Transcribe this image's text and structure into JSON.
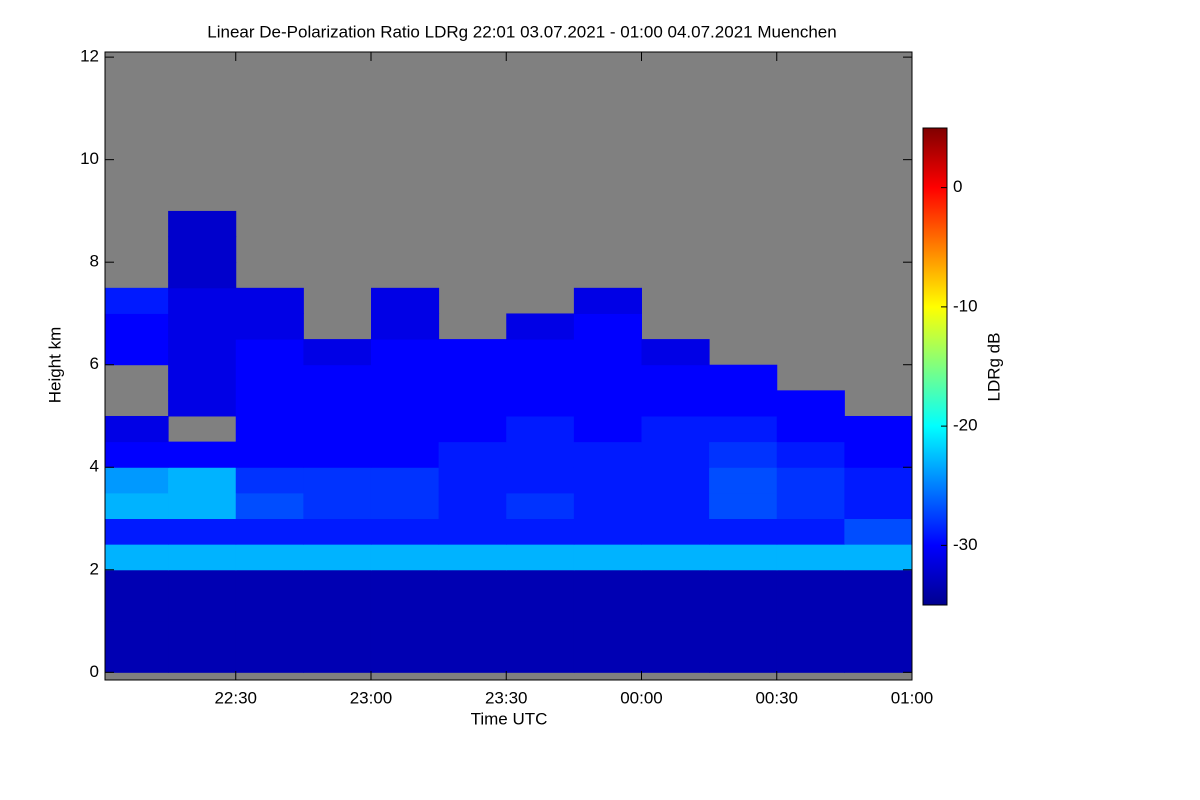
{
  "chart_data": {
    "type": "heatmap",
    "title": "Linear De-Polarization Ratio LDRg   22:01 03.07.2021 - 01:00 04.07.2021 Muenchen",
    "xlabel": "Time UTC",
    "ylabel": "Height km",
    "colorbar_label": "LDRg dB",
    "colormap": "jet",
    "no_data_color": "#808080",
    "xlim": [
      1,
      180
    ],
    "xticks": [
      {
        "value": 30,
        "label": "22:30"
      },
      {
        "value": 60,
        "label": "23:00"
      },
      {
        "value": 90,
        "label": "23:30"
      },
      {
        "value": 120,
        "label": "00:00"
      },
      {
        "value": 150,
        "label": "00:30"
      },
      {
        "value": 180,
        "label": "01:00"
      }
    ],
    "ylim": [
      -0.15,
      12.1
    ],
    "yticks": [
      0,
      2,
      4,
      6,
      8,
      10,
      12
    ],
    "clim": [
      -35,
      5
    ],
    "cticks": [
      0,
      -10,
      -20,
      -30
    ],
    "x_bins": [
      1,
      15,
      30,
      45,
      60,
      75,
      90,
      105,
      120,
      135,
      150,
      165,
      180
    ],
    "y_bins": [
      0,
      0.5,
      1,
      1.5,
      2,
      2.5,
      3,
      3.5,
      4,
      4.5,
      5,
      5.5,
      6,
      6.5,
      7,
      7.5,
      8,
      8.5,
      9
    ],
    "z": [
      [
        -33,
        -33,
        -33,
        -33,
        -33,
        -33,
        -33,
        -33,
        -33,
        -33,
        -33,
        -33
      ],
      [
        -33,
        -33,
        -33,
        -33,
        -33,
        -33,
        -33,
        -33,
        -33,
        -33,
        -33,
        -33
      ],
      [
        -33,
        -33,
        -33,
        -33,
        -33,
        -33,
        -33,
        -33,
        -33,
        -33,
        -33,
        -33
      ],
      [
        -33,
        -33,
        -33,
        -33,
        -33,
        -33,
        -33,
        -33,
        -33,
        -33,
        -33,
        -33
      ],
      [
        -23,
        -23,
        -23,
        -23,
        -23,
        -23,
        -23,
        -23,
        -23,
        -23,
        -23,
        -23
      ],
      [
        -29,
        -29,
        -29,
        -29,
        -29,
        -29,
        -29,
        -29,
        -29,
        -29,
        -29,
        -27
      ],
      [
        -23,
        -23,
        -27,
        -28,
        -28,
        -29,
        -28,
        -29,
        -29,
        -27,
        -28,
        -29
      ],
      [
        -24,
        -23,
        -28,
        -28,
        -28,
        -29,
        -29,
        -29,
        -29,
        -27,
        -28,
        -29
      ],
      [
        -30,
        -30,
        -30,
        -30,
        -30,
        -29,
        -29,
        -29,
        -29,
        -28,
        -29,
        -30
      ],
      [
        -31,
        null,
        -30,
        -30,
        -30,
        -30,
        -29,
        -30,
        -29,
        -29,
        -30,
        -30
      ],
      [
        null,
        -31,
        -30,
        -30,
        -30,
        -30,
        -30,
        -30,
        -30,
        -30,
        -30,
        null
      ],
      [
        null,
        -31,
        -30,
        -30,
        -30,
        -30,
        -30,
        -30,
        -30,
        -30,
        null,
        null
      ],
      [
        -30,
        -31,
        -30,
        -31,
        -30,
        -30,
        -30,
        -30,
        -31,
        null,
        null,
        null
      ],
      [
        -30,
        -31,
        -31,
        null,
        -31,
        null,
        -31,
        -30,
        null,
        null,
        null,
        null
      ],
      [
        -29,
        -31,
        -31,
        null,
        -31,
        null,
        null,
        -31,
        null,
        null,
        null,
        null
      ],
      [
        null,
        -32,
        null,
        null,
        null,
        null,
        null,
        null,
        null,
        null,
        null,
        null
      ],
      [
        null,
        -32,
        null,
        null,
        null,
        null,
        null,
        null,
        null,
        null,
        null,
        null
      ],
      [
        null,
        -32,
        null,
        null,
        null,
        null,
        null,
        null,
        null,
        null,
        null,
        null
      ]
    ]
  }
}
